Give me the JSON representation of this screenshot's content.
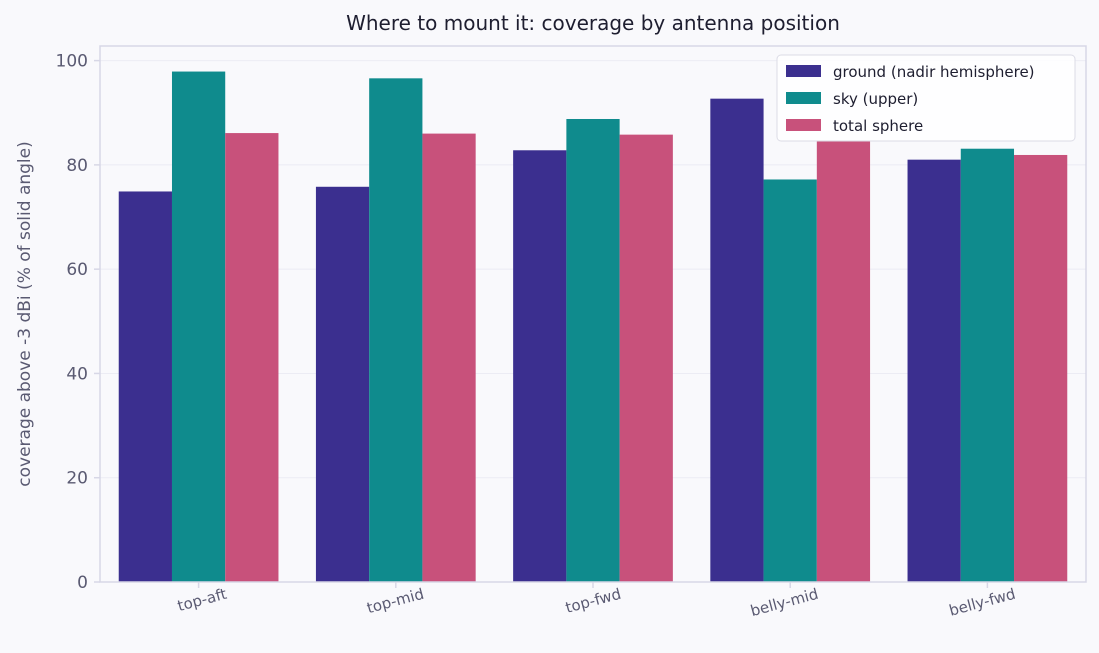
{
  "chart_data": {
    "type": "bar",
    "title": "Where to mount it: coverage by antenna position",
    "xlabel": "",
    "ylabel": "coverage above -3 dBi  (% of solid angle)",
    "categories": [
      "top-aft",
      "top-mid",
      "top-fwd",
      "belly-mid",
      "belly-fwd"
    ],
    "series": [
      {
        "name": "ground (nadir hemisphere)",
        "values": [
          74.9,
          75.8,
          82.8,
          92.7,
          81.0
        ],
        "color": "#3b2f8f"
      },
      {
        "name": "sky (upper)",
        "values": [
          97.9,
          96.6,
          88.8,
          77.2,
          83.1
        ],
        "color": "#0f8b8d"
      },
      {
        "name": "total sphere",
        "values": [
          86.1,
          86.0,
          85.8,
          84.7,
          81.9
        ],
        "color": "#c8517b"
      }
    ],
    "ylim": [
      0,
      102.8
    ],
    "yticks": [
      0,
      20,
      40,
      60,
      80,
      100
    ],
    "grid": true,
    "legend_position": "top-right"
  },
  "colors": {
    "background": "#f9f9fc",
    "plot_background": "#f9f9fc",
    "axis": "#d7d7e6",
    "grid": "#ececf4",
    "text": "#5a5a72",
    "title": "#1e1e30"
  }
}
